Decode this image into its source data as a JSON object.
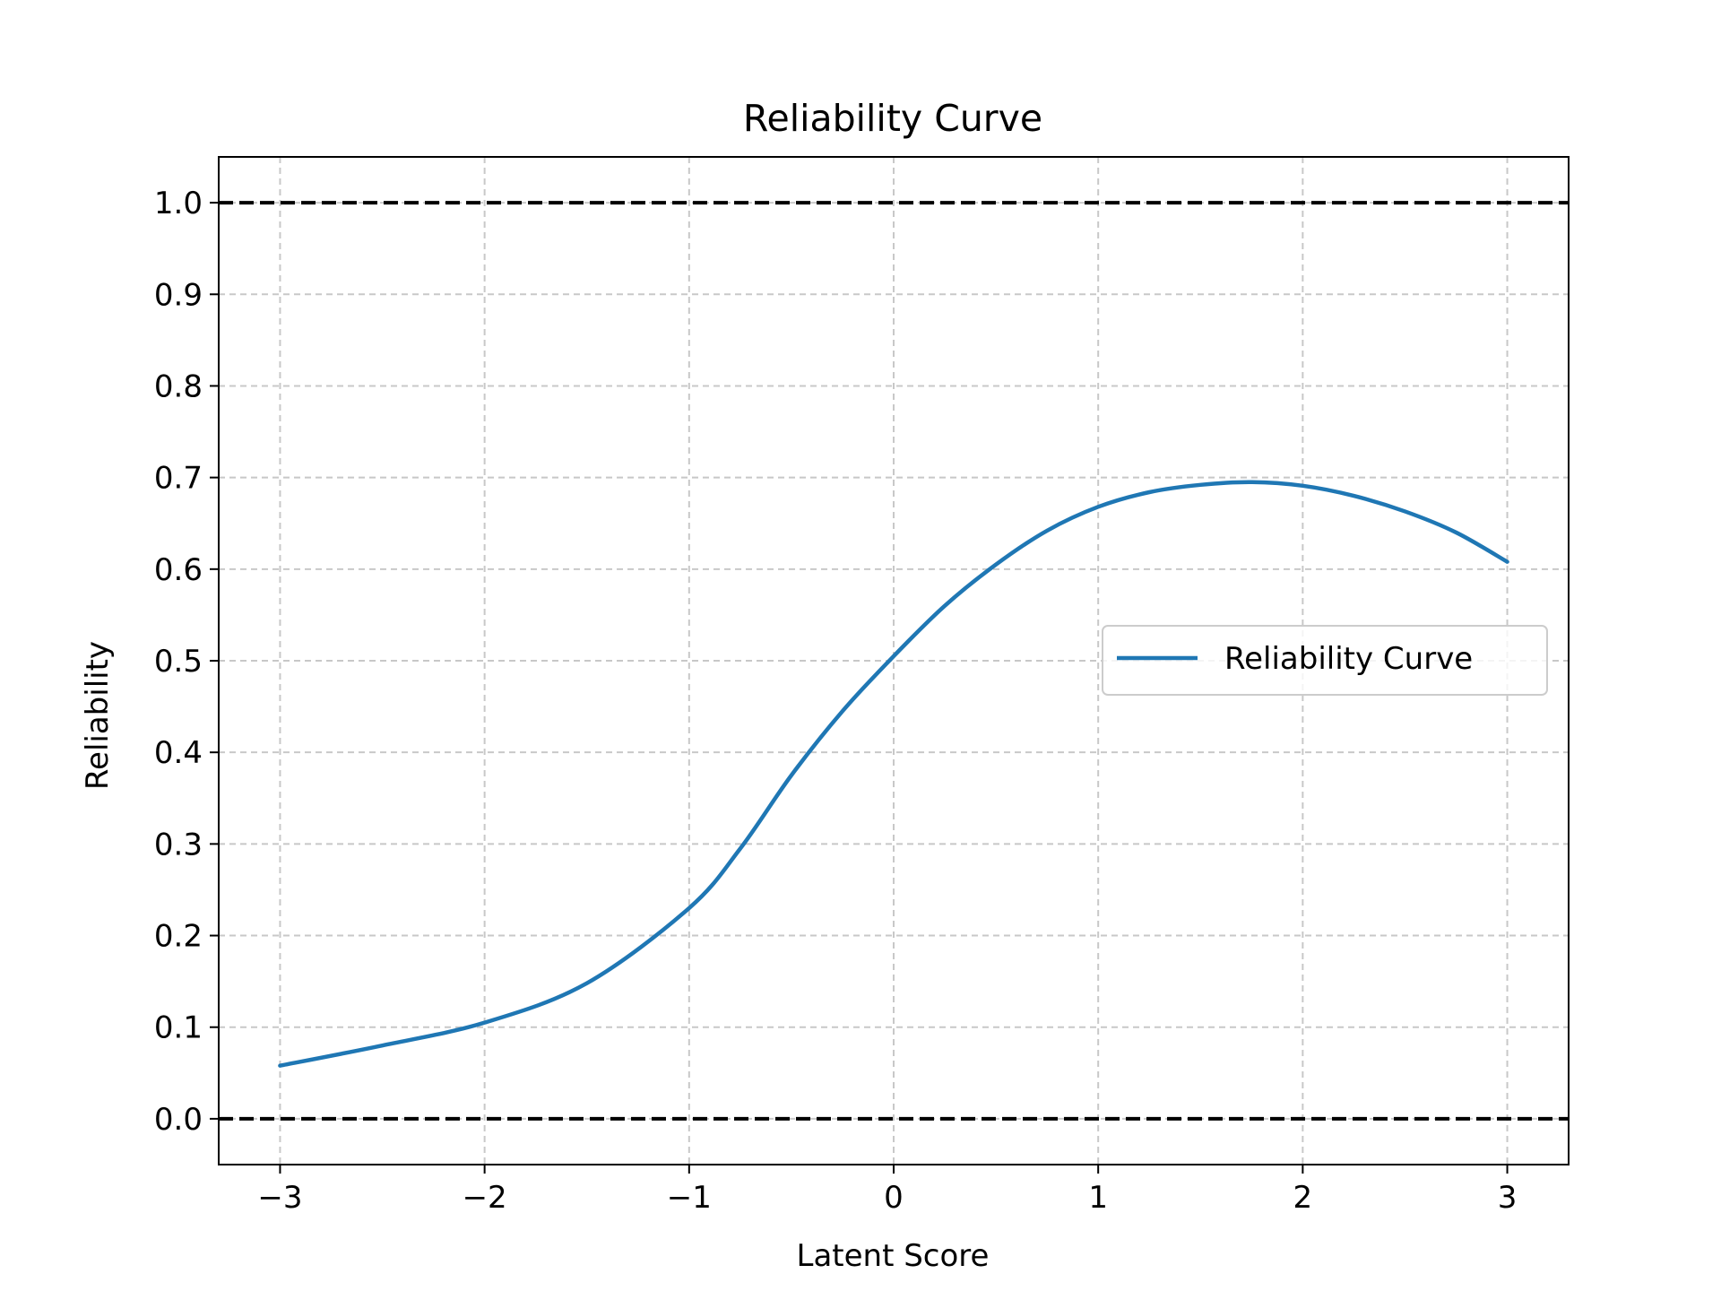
{
  "chart_data": {
    "type": "line",
    "title": "Reliability Curve",
    "xlabel": "Latent Score",
    "ylabel": "Reliability",
    "xlim": [
      -3.3,
      3.3
    ],
    "ylim": [
      -0.05,
      1.05
    ],
    "xticks": [
      -3,
      -2,
      -1,
      0,
      1,
      2,
      3
    ],
    "xtick_labels": [
      "−3",
      "−2",
      "−1",
      "0",
      "1",
      "2",
      "3"
    ],
    "yticks": [
      0.0,
      0.1,
      0.2,
      0.3,
      0.4,
      0.5,
      0.6,
      0.7,
      0.8,
      0.9,
      1.0
    ],
    "ytick_labels": [
      "0.0",
      "0.1",
      "0.2",
      "0.3",
      "0.4",
      "0.5",
      "0.6",
      "0.7",
      "0.8",
      "0.9",
      "1.0"
    ],
    "grid": true,
    "legend_position": "center-right",
    "series": [
      {
        "name": "Reliability Curve",
        "color": "#1f77b4",
        "x": [
          -3.0,
          -2.5,
          -2.0,
          -1.5,
          -1.0,
          -0.75,
          -0.5,
          -0.25,
          0.0,
          0.25,
          0.5,
          0.75,
          1.0,
          1.25,
          1.5,
          1.75,
          2.0,
          2.25,
          2.5,
          2.75,
          3.0
        ],
        "y": [
          0.058,
          0.08,
          0.105,
          0.148,
          0.23,
          0.295,
          0.375,
          0.445,
          0.505,
          0.56,
          0.605,
          0.642,
          0.668,
          0.684,
          0.692,
          0.695,
          0.691,
          0.68,
          0.663,
          0.64,
          0.608
        ]
      }
    ],
    "reference_lines": [
      {
        "name": "upper-bound",
        "y": 1.0,
        "color": "#000000",
        "style": "dashed"
      },
      {
        "name": "lower-bound",
        "y": 0.0,
        "color": "#000000",
        "style": "dashed"
      }
    ]
  }
}
